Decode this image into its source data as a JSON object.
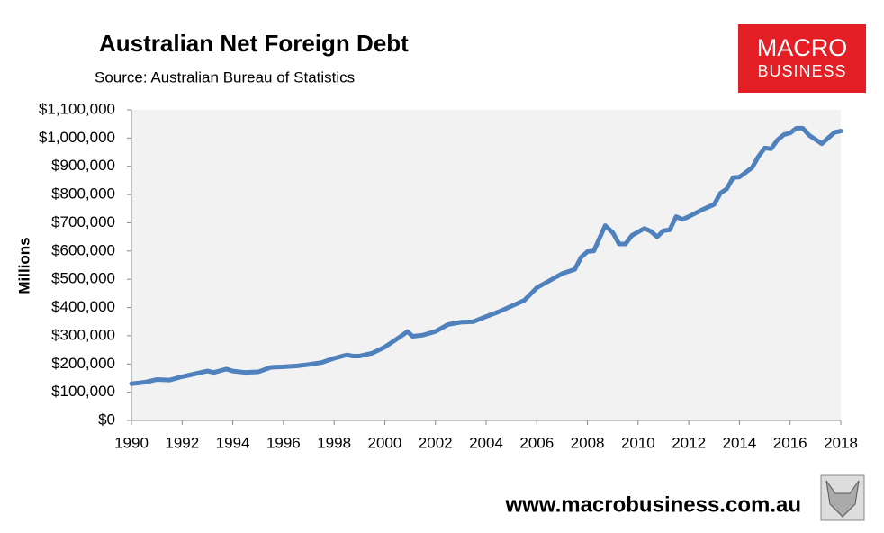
{
  "chart_data": {
    "type": "line",
    "title": "Australian Net Foreign Debt",
    "subtitle": "Source:  Australian Bureau of Statistics",
    "y_label": "Millions",
    "logo": [
      "MACRO",
      "BUSINESS"
    ],
    "footer": "www.macrobusiness.com.au",
    "xlim": [
      1990,
      2018
    ],
    "xticks": [
      1990,
      1992,
      1994,
      1996,
      1998,
      2000,
      2002,
      2004,
      2006,
      2008,
      2010,
      2012,
      2014,
      2016,
      2018
    ],
    "ylim": [
      0,
      1100000
    ],
    "yticks": [
      {
        "value": 0,
        "label": "$0"
      },
      {
        "value": 100000,
        "label": "$100,000"
      },
      {
        "value": 200000,
        "label": "$200,000"
      },
      {
        "value": 300000,
        "label": "$300,000"
      },
      {
        "value": 400000,
        "label": "$400,000"
      },
      {
        "value": 500000,
        "label": "$500,000"
      },
      {
        "value": 600000,
        "label": "$600,000"
      },
      {
        "value": 700000,
        "label": "$700,000"
      },
      {
        "value": 800000,
        "label": "$800,000"
      },
      {
        "value": 900000,
        "label": "$900,000"
      },
      {
        "value": 1000000,
        "label": "$1,000,000"
      },
      {
        "value": 1100000,
        "label": "$1,100,000"
      }
    ],
    "grid": false,
    "x": [
      1990,
      1990.5,
      1991,
      1991.5,
      1992,
      1992.5,
      1993,
      1993.25,
      1993.75,
      1994,
      1994.5,
      1995,
      1995.5,
      1996,
      1996.5,
      1997,
      1997.5,
      1998,
      1998.5,
      1998.75,
      1999,
      1999.5,
      2000,
      2000.5,
      2000.9,
      2001.1,
      2001.5,
      2002,
      2002.5,
      2003,
      2003.5,
      2004,
      2004.5,
      2005,
      2005.5,
      2006,
      2006.5,
      2007,
      2007.5,
      2007.75,
      2008,
      2008.25,
      2008.7,
      2009,
      2009.25,
      2009.5,
      2009.75,
      2010.25,
      2010.5,
      2010.75,
      2011,
      2011.25,
      2011.5,
      2011.75,
      2012,
      2012.5,
      2013,
      2013.25,
      2013.5,
      2013.75,
      2014,
      2014.5,
      2014.75,
      2015,
      2015.25,
      2015.5,
      2015.75,
      2016,
      2016.25,
      2016.5,
      2016.75,
      2017.25,
      2017.75,
      2018
    ],
    "series": [
      {
        "name": "Net Foreign Debt",
        "color": "#4f81bd",
        "values": [
          130000,
          135000,
          145000,
          143000,
          155000,
          165000,
          175000,
          170000,
          182000,
          175000,
          170000,
          172000,
          188000,
          190000,
          193000,
          198000,
          205000,
          220000,
          232000,
          228000,
          228000,
          238000,
          260000,
          290000,
          315000,
          298000,
          302000,
          315000,
          340000,
          348000,
          350000,
          368000,
          385000,
          405000,
          425000,
          470000,
          495000,
          520000,
          535000,
          578000,
          598000,
          600000,
          690000,
          665000,
          625000,
          625000,
          655000,
          680000,
          670000,
          650000,
          672000,
          675000,
          722000,
          712000,
          722000,
          745000,
          765000,
          805000,
          820000,
          860000,
          862000,
          895000,
          935000,
          965000,
          962000,
          993000,
          1012000,
          1018000,
          1035000,
          1035000,
          1010000,
          980000,
          1020000,
          1025000
        ]
      }
    ]
  }
}
